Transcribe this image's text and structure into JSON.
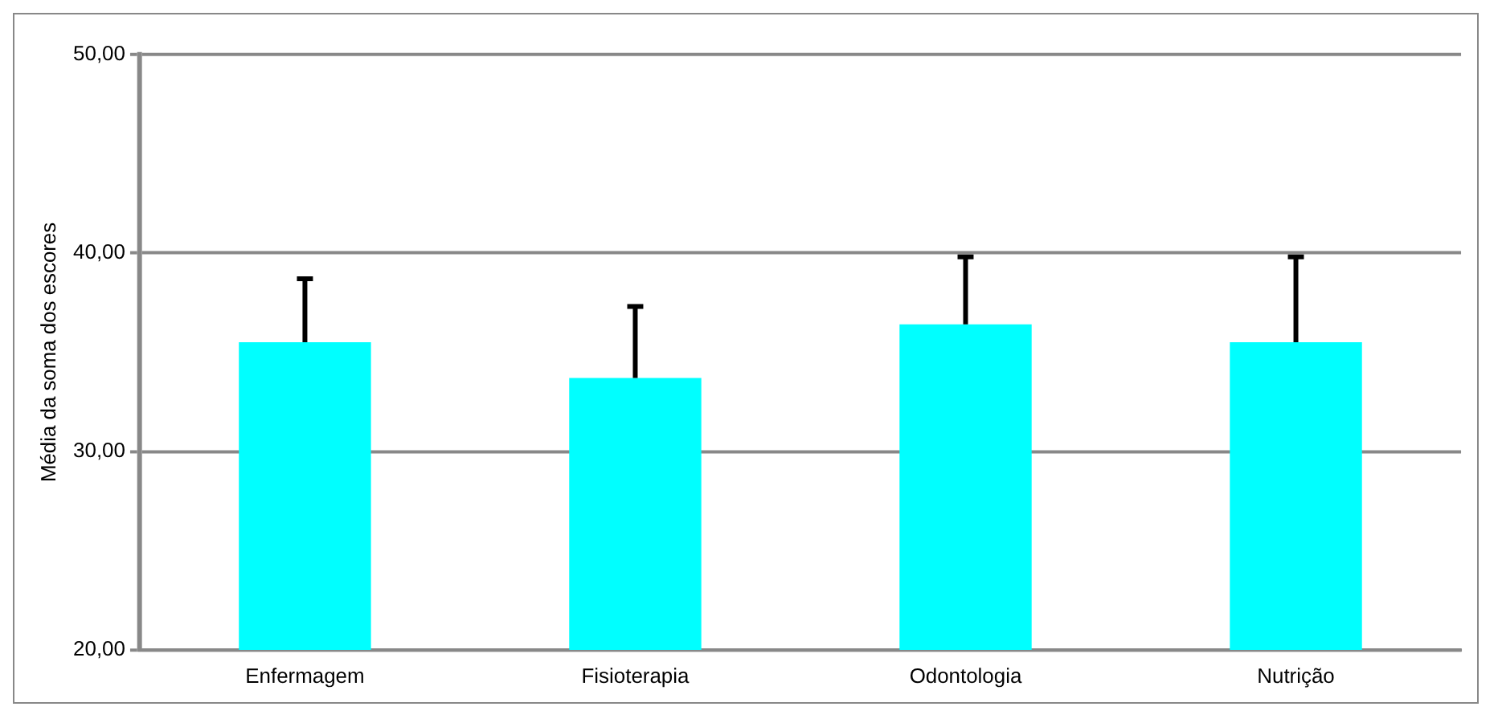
{
  "chart_data": {
    "type": "bar",
    "ylabel": "Média da soma dos escores",
    "categories": [
      "Enfermagem",
      "Fisioterapia",
      "Odontologia",
      "Nutrição"
    ],
    "values": [
      35.5,
      33.7,
      36.4,
      35.5
    ],
    "errors": [
      [
        35.5,
        38.7
      ],
      [
        33.7,
        37.3
      ],
      [
        36.4,
        39.8
      ],
      [
        35.5,
        39.8
      ]
    ],
    "color": "#00ffff",
    "ylim": [
      20,
      50
    ],
    "yticks": [
      {
        "value": 20,
        "label": "20,00"
      },
      {
        "value": 30,
        "label": "30,00"
      },
      {
        "value": 40,
        "label": "40,00"
      },
      {
        "value": 50,
        "label": "50,00"
      }
    ],
    "grid": "y",
    "legend": false
  }
}
